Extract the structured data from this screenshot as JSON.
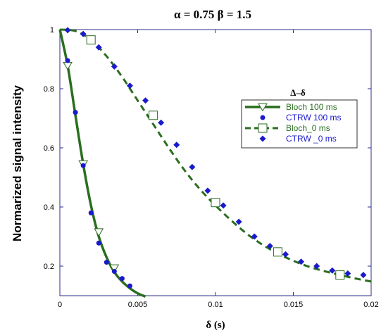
{
  "chart_data": {
    "type": "line",
    "title": "α = 0.75   β = 1.5",
    "xlabel": "δ (s)",
    "ylabel": "Normarized signal intensity",
    "xlim": [
      0,
      0.02
    ],
    "ylim": [
      0.1,
      1.0
    ],
    "xticks": [
      0,
      0.005,
      0.01,
      0.015,
      0.02
    ],
    "xtick_labels": [
      "0",
      "0.005",
      "0.01",
      "0.015",
      "0.02"
    ],
    "yticks": [
      0.2,
      0.4,
      0.6,
      0.8,
      1.0
    ],
    "ytick_labels": [
      "0.2",
      "0.4",
      "0.6",
      "0.8",
      "1"
    ],
    "legend_title": "Δ–δ",
    "legend_position": "right",
    "series": [
      {
        "name": "Bloch  100 ms",
        "style": "solid-line-with-triangle-markers",
        "color": "#2a6e1f",
        "line_x": [
          0,
          0.0005,
          0.001,
          0.0015,
          0.002,
          0.0025,
          0.003,
          0.0035,
          0.004,
          0.0045,
          0.005,
          0.0055
        ],
        "line_y": [
          1.0,
          0.878,
          0.71,
          0.545,
          0.405,
          0.3,
          0.23,
          0.18,
          0.148,
          0.125,
          0.108,
          0.097
        ],
        "x": [
          0.0005,
          0.0015,
          0.0025,
          0.0035
        ],
        "y": [
          0.878,
          0.545,
          0.315,
          0.193
        ]
      },
      {
        "name": "CTRW 100 ms",
        "style": "circle-markers",
        "color": "#1a1acc",
        "x": [
          0.0005,
          0.001,
          0.0015,
          0.002,
          0.0025,
          0.003,
          0.0035,
          0.004,
          0.0045
        ],
        "y": [
          0.895,
          0.72,
          0.54,
          0.38,
          0.278,
          0.213,
          0.182,
          0.158,
          0.133
        ]
      },
      {
        "name": "Bloch_0 ms",
        "style": "dashed-line-with-square-markers",
        "color": "#2a6e1f",
        "line_x": [
          0,
          0.001,
          0.002,
          0.003,
          0.004,
          0.005,
          0.006,
          0.007,
          0.008,
          0.009,
          0.01,
          0.011,
          0.012,
          0.013,
          0.014,
          0.015,
          0.016,
          0.017,
          0.018,
          0.019,
          0.02
        ],
        "line_y": [
          1.0,
          0.995,
          0.965,
          0.91,
          0.84,
          0.76,
          0.68,
          0.6,
          0.525,
          0.46,
          0.405,
          0.355,
          0.31,
          0.273,
          0.243,
          0.218,
          0.198,
          0.183,
          0.17,
          0.158,
          0.148
        ],
        "x": [
          0.002,
          0.006,
          0.01,
          0.014,
          0.018
        ],
        "y": [
          0.965,
          0.71,
          0.415,
          0.248,
          0.17
        ]
      },
      {
        "name": "CTRW _0 ms",
        "style": "diamond-markers",
        "color": "#1a1acc",
        "x": [
          0.0005,
          0.0015,
          0.0025,
          0.0035,
          0.0045,
          0.0055,
          0.0065,
          0.0075,
          0.0085,
          0.0095,
          0.0105,
          0.0115,
          0.0125,
          0.0135,
          0.0145,
          0.0155,
          0.0165,
          0.0175,
          0.0185,
          0.0195
        ],
        "y": [
          0.998,
          0.985,
          0.94,
          0.875,
          0.81,
          0.76,
          0.685,
          0.61,
          0.535,
          0.455,
          0.405,
          0.35,
          0.3,
          0.268,
          0.24,
          0.215,
          0.2,
          0.185,
          0.175,
          0.17
        ]
      }
    ]
  }
}
